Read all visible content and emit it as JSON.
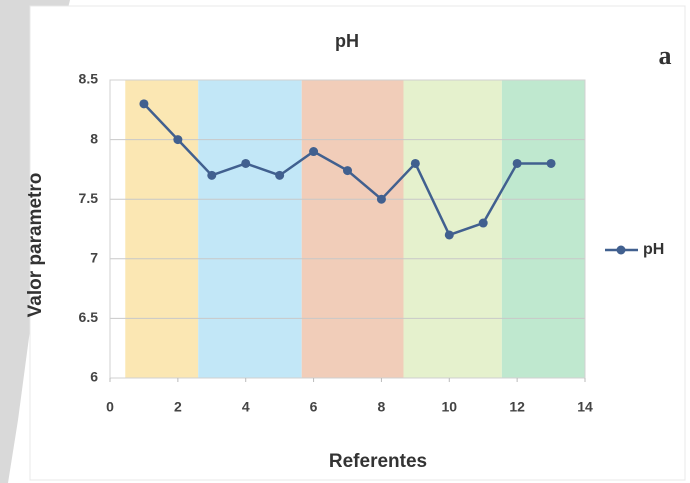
{
  "chart_data": {
    "type": "line",
    "title": "pH",
    "annotation": "a",
    "x_label": "Referentes",
    "y_label": "Valor parametro",
    "x": [
      1,
      2,
      3,
      4,
      5,
      6,
      7,
      8,
      9,
      10,
      11,
      12,
      13
    ],
    "series": [
      {
        "name": "pH",
        "color": "#41608f",
        "values": [
          8.3,
          8.0,
          7.7,
          7.8,
          7.7,
          7.9,
          7.74,
          7.5,
          7.8,
          7.2,
          7.3,
          7.8,
          7.8
        ]
      }
    ],
    "bands": [
      {
        "from": 0.45,
        "to": 2.6,
        "color": "#fbe7b3"
      },
      {
        "from": 2.6,
        "to": 5.65,
        "color": "#c2e7f7"
      },
      {
        "from": 5.65,
        "to": 8.65,
        "color": "#f1cdb9"
      },
      {
        "from": 8.65,
        "to": 11.55,
        "color": "#e5f1cd"
      },
      {
        "from": 11.55,
        "to": 14,
        "color": "#bfe8cf"
      }
    ],
    "xlim": [
      0,
      14
    ],
    "xticks": [
      0,
      2,
      4,
      6,
      8,
      10,
      12,
      14
    ],
    "ylim": [
      6,
      8.5
    ],
    "yticks": [
      6,
      6.5,
      7,
      7.5,
      8,
      8.5
    ],
    "grid": true,
    "legend": "right"
  }
}
